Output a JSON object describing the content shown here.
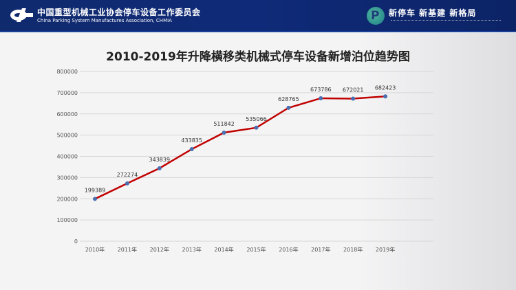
{
  "header": {
    "org_cn": "中国重型机械工业协会停车设备工作委员会",
    "org_en": "China Parking System Manufactures Association, CHMIA",
    "slogan": "新停车  新基建  新格局",
    "colors": {
      "header_bg": "#102a6e",
      "line": "#c00000",
      "marker": "#4a6fb0"
    }
  },
  "chart_data": {
    "type": "line",
    "title": "2010-2019年升降横移类机械式停车设备新增泊位趋势图",
    "categories": [
      "2010年",
      "2011年",
      "2012年",
      "2013年",
      "2014年",
      "2015年",
      "2016年",
      "2017年",
      "2018年",
      "2019年"
    ],
    "values": [
      199389,
      272274,
      343839,
      433835,
      511842,
      535066,
      628765,
      673786,
      672021,
      682423
    ],
    "data_labels": [
      "199389",
      "272274",
      "343839",
      "433835",
      "511842",
      "535066",
      "628765",
      "673786",
      "672021",
      "682423"
    ],
    "yticks": [
      "0",
      "100000",
      "200000",
      "300000",
      "400000",
      "500000",
      "600000",
      "700000",
      "800000"
    ],
    "ylim": [
      0,
      800000
    ],
    "grid": true,
    "legend": "none"
  }
}
